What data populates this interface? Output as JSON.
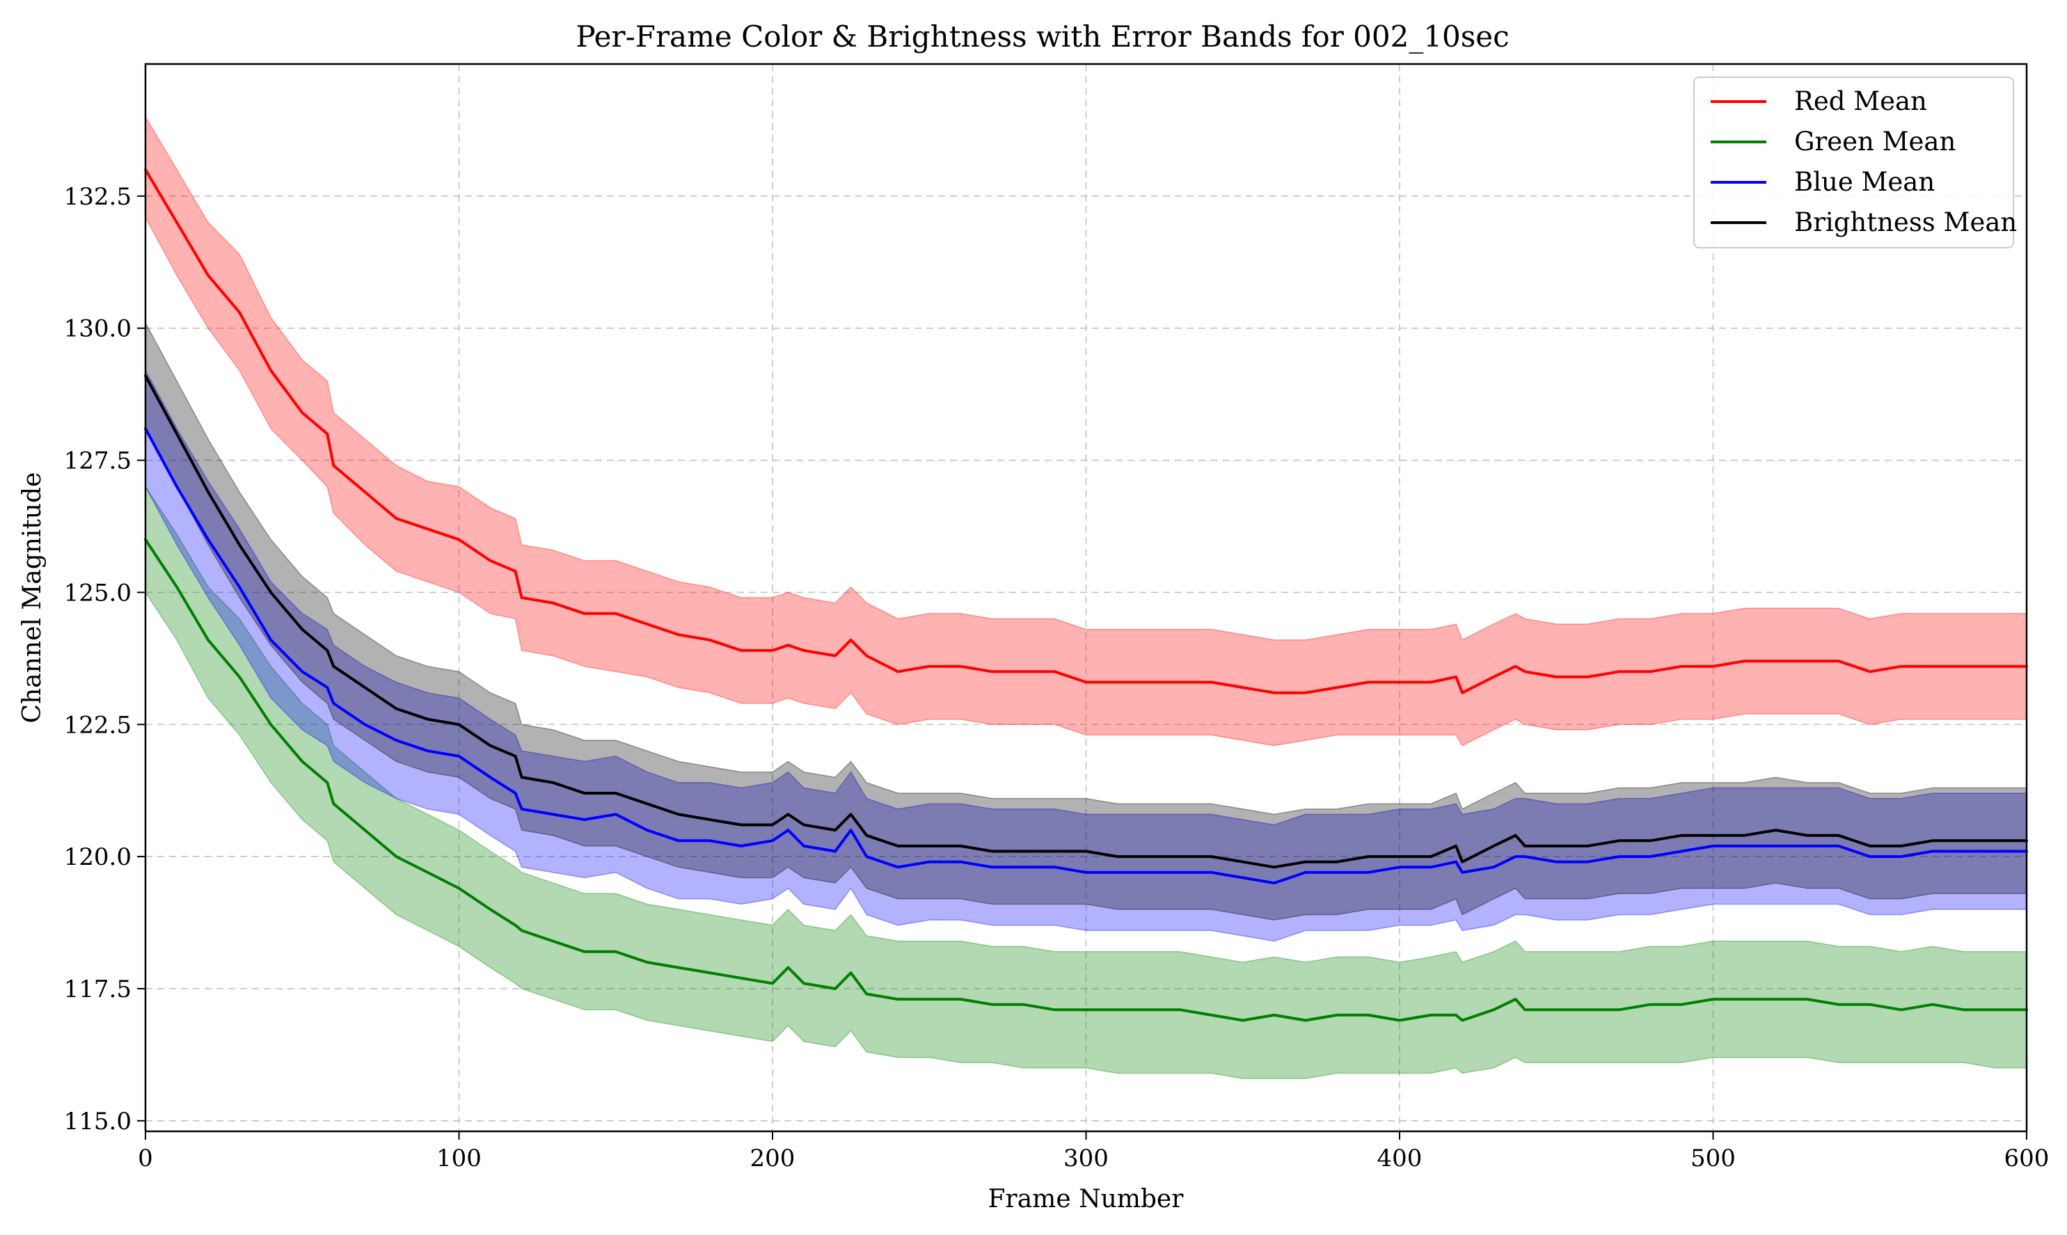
{
  "chart_data": {
    "type": "line",
    "title": "Per-Frame Color & Brightness with Error Bands for 002_10sec",
    "xlabel": "Frame Number",
    "ylabel": "Channel Magnitude",
    "xlim": [
      0,
      600
    ],
    "ylim": [
      114.8,
      135.0
    ],
    "x_ticks": [
      "0",
      "100",
      "200",
      "300",
      "400",
      "500",
      "600"
    ],
    "y_ticks": [
      "115.0",
      "117.5",
      "120.0",
      "122.5",
      "125.0",
      "127.5",
      "130.0",
      "132.5"
    ],
    "grid": true,
    "legend_position": "top-right",
    "x": [
      0,
      10,
      20,
      30,
      40,
      50,
      58,
      60,
      70,
      80,
      90,
      100,
      110,
      118,
      120,
      130,
      140,
      150,
      160,
      170,
      180,
      190,
      200,
      205,
      210,
      220,
      225,
      230,
      240,
      250,
      260,
      270,
      280,
      290,
      300,
      310,
      320,
      330,
      340,
      350,
      360,
      370,
      380,
      390,
      400,
      410,
      418,
      420,
      430,
      437,
      440,
      450,
      460,
      470,
      480,
      490,
      500,
      510,
      520,
      530,
      540,
      550,
      560,
      570,
      580,
      590,
      600
    ],
    "series": [
      {
        "name": "Red Mean",
        "color": "#ff0000",
        "band_color": "#ff0000",
        "values": [
          133.0,
          132.0,
          131.0,
          130.3,
          129.2,
          128.4,
          128.0,
          127.4,
          126.9,
          126.4,
          126.2,
          126.0,
          125.6,
          125.4,
          124.9,
          124.8,
          124.6,
          124.6,
          124.4,
          124.2,
          124.1,
          123.9,
          123.9,
          124.0,
          123.9,
          123.8,
          124.1,
          123.8,
          123.5,
          123.6,
          123.6,
          123.5,
          123.5,
          123.5,
          123.3,
          123.3,
          123.3,
          123.3,
          123.3,
          123.2,
          123.1,
          123.1,
          123.2,
          123.3,
          123.3,
          123.3,
          123.4,
          123.1,
          123.4,
          123.6,
          123.5,
          123.4,
          123.4,
          123.5,
          123.5,
          123.6,
          123.6,
          123.7,
          123.7,
          123.7,
          123.7,
          123.5,
          123.6,
          123.6,
          123.6,
          123.6,
          123.6
        ],
        "lower": [
          132.1,
          131.0,
          130.0,
          129.2,
          128.1,
          127.5,
          127.0,
          126.5,
          125.9,
          125.4,
          125.2,
          125.0,
          124.6,
          124.5,
          123.9,
          123.8,
          123.6,
          123.5,
          123.4,
          123.2,
          123.1,
          122.9,
          122.9,
          123.0,
          122.9,
          122.8,
          123.1,
          122.7,
          122.5,
          122.6,
          122.6,
          122.5,
          122.5,
          122.5,
          122.3,
          122.3,
          122.3,
          122.3,
          122.3,
          122.2,
          122.1,
          122.2,
          122.3,
          122.3,
          122.3,
          122.3,
          122.3,
          122.1,
          122.4,
          122.6,
          122.5,
          122.4,
          122.4,
          122.5,
          122.5,
          122.6,
          122.6,
          122.7,
          122.7,
          122.7,
          122.7,
          122.5,
          122.6,
          122.6,
          122.6,
          122.6,
          122.6
        ],
        "upper": [
          134.0,
          133.0,
          132.0,
          131.4,
          130.2,
          129.4,
          129.0,
          128.4,
          127.9,
          127.4,
          127.1,
          127.0,
          126.6,
          126.4,
          125.9,
          125.8,
          125.6,
          125.6,
          125.4,
          125.2,
          125.1,
          124.9,
          124.9,
          125.0,
          124.9,
          124.8,
          125.1,
          124.8,
          124.5,
          124.6,
          124.6,
          124.5,
          124.5,
          124.5,
          124.3,
          124.3,
          124.3,
          124.3,
          124.3,
          124.2,
          124.1,
          124.1,
          124.2,
          124.3,
          124.3,
          124.3,
          124.4,
          124.1,
          124.4,
          124.6,
          124.5,
          124.4,
          124.4,
          124.5,
          124.5,
          124.6,
          124.6,
          124.7,
          124.7,
          124.7,
          124.7,
          124.5,
          124.6,
          124.6,
          124.6,
          124.6,
          124.6
        ]
      },
      {
        "name": "Green Mean",
        "color": "#008000",
        "band_color": "#008000",
        "values": [
          126.0,
          125.1,
          124.1,
          123.4,
          122.5,
          121.8,
          121.4,
          121.0,
          120.5,
          120.0,
          119.7,
          119.4,
          119.0,
          118.7,
          118.6,
          118.4,
          118.2,
          118.2,
          118.0,
          117.9,
          117.8,
          117.7,
          117.6,
          117.9,
          117.6,
          117.5,
          117.8,
          117.4,
          117.3,
          117.3,
          117.3,
          117.2,
          117.2,
          117.1,
          117.1,
          117.1,
          117.1,
          117.1,
          117.0,
          116.9,
          117.0,
          116.9,
          117.0,
          117.0,
          116.9,
          117.0,
          117.0,
          116.9,
          117.1,
          117.3,
          117.1,
          117.1,
          117.1,
          117.1,
          117.2,
          117.2,
          117.3,
          117.3,
          117.3,
          117.3,
          117.2,
          117.2,
          117.1,
          117.2,
          117.1,
          117.1,
          117.1
        ],
        "lower": [
          125.0,
          124.1,
          123.0,
          122.3,
          121.4,
          120.7,
          120.3,
          119.9,
          119.4,
          118.9,
          118.6,
          118.3,
          117.9,
          117.6,
          117.5,
          117.3,
          117.1,
          117.1,
          116.9,
          116.8,
          116.7,
          116.6,
          116.5,
          116.8,
          116.5,
          116.4,
          116.7,
          116.3,
          116.2,
          116.2,
          116.1,
          116.1,
          116.0,
          116.0,
          116.0,
          115.9,
          115.9,
          115.9,
          115.9,
          115.8,
          115.8,
          115.8,
          115.9,
          115.9,
          115.9,
          115.9,
          116.0,
          115.9,
          116.0,
          116.2,
          116.1,
          116.1,
          116.1,
          116.1,
          116.1,
          116.1,
          116.2,
          116.2,
          116.2,
          116.2,
          116.1,
          116.1,
          116.1,
          116.1,
          116.1,
          116.0,
          116.0
        ],
        "upper": [
          127.0,
          126.1,
          125.1,
          124.5,
          123.6,
          122.9,
          122.5,
          122.1,
          121.6,
          121.1,
          120.8,
          120.5,
          120.1,
          119.8,
          119.7,
          119.5,
          119.3,
          119.3,
          119.1,
          119.0,
          118.9,
          118.8,
          118.7,
          119.0,
          118.7,
          118.6,
          118.9,
          118.5,
          118.4,
          118.4,
          118.4,
          118.3,
          118.3,
          118.2,
          118.2,
          118.2,
          118.2,
          118.2,
          118.1,
          118.0,
          118.1,
          118.0,
          118.1,
          118.1,
          118.0,
          118.1,
          118.2,
          118.0,
          118.2,
          118.4,
          118.2,
          118.2,
          118.2,
          118.2,
          118.3,
          118.3,
          118.4,
          118.4,
          118.4,
          118.4,
          118.3,
          118.3,
          118.2,
          118.3,
          118.2,
          118.2,
          118.2
        ]
      },
      {
        "name": "Blue Mean",
        "color": "#0000ff",
        "band_color": "#0000ff",
        "values": [
          128.1,
          127.0,
          126.0,
          125.1,
          124.1,
          123.5,
          123.2,
          122.9,
          122.5,
          122.2,
          122.0,
          121.9,
          121.5,
          121.2,
          120.9,
          120.8,
          120.7,
          120.8,
          120.5,
          120.3,
          120.3,
          120.2,
          120.3,
          120.5,
          120.2,
          120.1,
          120.5,
          120.0,
          119.8,
          119.9,
          119.9,
          119.8,
          119.8,
          119.8,
          119.7,
          119.7,
          119.7,
          119.7,
          119.7,
          119.6,
          119.5,
          119.7,
          119.7,
          119.7,
          119.8,
          119.8,
          119.9,
          119.7,
          119.8,
          120.0,
          120.0,
          119.9,
          119.9,
          120.0,
          120.0,
          120.1,
          120.2,
          120.2,
          120.2,
          120.2,
          120.2,
          120.0,
          120.0,
          120.1,
          120.1,
          120.1,
          120.1
        ],
        "lower": [
          127.0,
          125.9,
          124.9,
          124.0,
          123.0,
          122.4,
          122.1,
          121.8,
          121.4,
          121.1,
          120.9,
          120.8,
          120.4,
          120.1,
          119.8,
          119.7,
          119.6,
          119.7,
          119.4,
          119.2,
          119.2,
          119.1,
          119.2,
          119.4,
          119.1,
          119.0,
          119.4,
          118.9,
          118.7,
          118.8,
          118.8,
          118.7,
          118.7,
          118.7,
          118.6,
          118.6,
          118.6,
          118.6,
          118.6,
          118.5,
          118.4,
          118.6,
          118.6,
          118.6,
          118.7,
          118.7,
          118.8,
          118.6,
          118.7,
          118.9,
          118.9,
          118.8,
          118.8,
          118.9,
          118.9,
          119.0,
          119.1,
          119.1,
          119.1,
          119.1,
          119.1,
          118.9,
          118.9,
          119.0,
          119.0,
          119.0,
          119.0
        ],
        "upper": [
          129.2,
          128.1,
          127.1,
          126.2,
          125.2,
          124.6,
          124.3,
          124.0,
          123.6,
          123.3,
          123.1,
          123.0,
          122.6,
          122.3,
          122.0,
          121.9,
          121.8,
          121.9,
          121.6,
          121.4,
          121.4,
          121.3,
          121.4,
          121.6,
          121.3,
          121.2,
          121.6,
          121.1,
          120.9,
          121.0,
          121.0,
          120.9,
          120.9,
          120.9,
          120.8,
          120.8,
          120.8,
          120.8,
          120.8,
          120.7,
          120.6,
          120.8,
          120.8,
          120.8,
          120.9,
          120.9,
          121.0,
          120.8,
          120.9,
          121.1,
          121.1,
          121.0,
          121.0,
          121.1,
          121.1,
          121.2,
          121.3,
          121.3,
          121.3,
          121.3,
          121.3,
          121.1,
          121.1,
          121.2,
          121.2,
          121.2,
          121.2
        ]
      },
      {
        "name": "Brightness Mean",
        "color": "#000000",
        "band_color": "#000000",
        "values": [
          129.1,
          128.0,
          126.9,
          125.9,
          125.0,
          124.3,
          123.9,
          123.6,
          123.2,
          122.8,
          122.6,
          122.5,
          122.1,
          121.9,
          121.5,
          121.4,
          121.2,
          121.2,
          121.0,
          120.8,
          120.7,
          120.6,
          120.6,
          120.8,
          120.6,
          120.5,
          120.8,
          120.4,
          120.2,
          120.2,
          120.2,
          120.1,
          120.1,
          120.1,
          120.1,
          120.0,
          120.0,
          120.0,
          120.0,
          119.9,
          119.8,
          119.9,
          119.9,
          120.0,
          120.0,
          120.0,
          120.2,
          119.9,
          120.2,
          120.4,
          120.2,
          120.2,
          120.2,
          120.3,
          120.3,
          120.4,
          120.4,
          120.4,
          120.5,
          120.4,
          120.4,
          120.2,
          120.2,
          120.3,
          120.3,
          120.3,
          120.3
        ],
        "lower": [
          128.1,
          127.0,
          125.9,
          124.9,
          124.0,
          123.3,
          122.9,
          122.6,
          122.2,
          121.8,
          121.6,
          121.5,
          121.1,
          120.9,
          120.5,
          120.4,
          120.2,
          120.2,
          120.0,
          119.8,
          119.7,
          119.6,
          119.6,
          119.8,
          119.6,
          119.5,
          119.8,
          119.4,
          119.2,
          119.2,
          119.2,
          119.1,
          119.1,
          119.1,
          119.1,
          119.0,
          119.0,
          119.0,
          119.0,
          118.9,
          118.8,
          118.9,
          118.9,
          119.0,
          119.0,
          119.0,
          119.2,
          118.9,
          119.2,
          119.4,
          119.2,
          119.2,
          119.2,
          119.3,
          119.3,
          119.4,
          119.4,
          119.4,
          119.5,
          119.4,
          119.4,
          119.2,
          119.2,
          119.3,
          119.3,
          119.3,
          119.3
        ],
        "upper": [
          130.1,
          129.0,
          127.9,
          126.9,
          126.0,
          125.3,
          124.9,
          124.6,
          124.2,
          123.8,
          123.6,
          123.5,
          123.1,
          122.9,
          122.5,
          122.4,
          122.2,
          122.2,
          122.0,
          121.8,
          121.7,
          121.6,
          121.6,
          121.8,
          121.6,
          121.5,
          121.8,
          121.4,
          121.2,
          121.2,
          121.2,
          121.1,
          121.1,
          121.1,
          121.1,
          121.0,
          121.0,
          121.0,
          121.0,
          120.9,
          120.8,
          120.9,
          120.9,
          121.0,
          121.0,
          121.0,
          121.2,
          120.9,
          121.2,
          121.4,
          121.2,
          121.2,
          121.2,
          121.3,
          121.3,
          121.4,
          121.4,
          121.4,
          121.5,
          121.4,
          121.4,
          121.2,
          121.2,
          121.3,
          121.3,
          121.3,
          121.3
        ]
      }
    ]
  }
}
